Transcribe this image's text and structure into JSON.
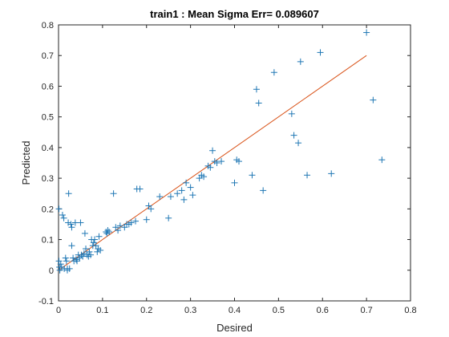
{
  "chart_data": {
    "type": "scatter",
    "title": "train1 :  Mean Sigma Err= 0.089607",
    "xlabel": "Desired",
    "ylabel": "Predicted",
    "xlim": [
      0,
      0.8
    ],
    "ylim": [
      -0.1,
      0.8
    ],
    "xticks": [
      "0",
      "0.1",
      "0.2",
      "0.3",
      "0.4",
      "0.5",
      "0.6",
      "0.7",
      "0.8"
    ],
    "yticks": [
      "-0.1",
      "0",
      "0.1",
      "0.2",
      "0.3",
      "0.4",
      "0.5",
      "0.6",
      "0.7",
      "0.8"
    ],
    "grid": false,
    "legend": "none",
    "colors": {
      "points": "#1f77b4",
      "fit_line": "#d95319",
      "axes": "#262626"
    },
    "fit_line": {
      "x": [
        0.0,
        0.7
      ],
      "y": [
        0.0,
        0.7
      ]
    },
    "points": [
      [
        0.001,
        0.2
      ],
      [
        0.001,
        0.03
      ],
      [
        0.002,
        0.01
      ],
      [
        0.003,
        0.0
      ],
      [
        0.005,
        0.02
      ],
      [
        0.007,
        0.01
      ],
      [
        0.009,
        0.18
      ],
      [
        0.012,
        0.17
      ],
      [
        0.013,
        0.005
      ],
      [
        0.016,
        0.04
      ],
      [
        0.018,
        0.03
      ],
      [
        0.02,
        0.005
      ],
      [
        0.02,
        0.0
      ],
      [
        0.022,
        0.155
      ],
      [
        0.023,
        0.25
      ],
      [
        0.025,
        0.005
      ],
      [
        0.028,
        0.15
      ],
      [
        0.03,
        0.14
      ],
      [
        0.03,
        0.08
      ],
      [
        0.033,
        0.04
      ],
      [
        0.035,
        0.03
      ],
      [
        0.038,
        0.155
      ],
      [
        0.04,
        0.035
      ],
      [
        0.042,
        0.03
      ],
      [
        0.045,
        0.05
      ],
      [
        0.048,
        0.04
      ],
      [
        0.05,
        0.155
      ],
      [
        0.052,
        0.05
      ],
      [
        0.055,
        0.045
      ],
      [
        0.058,
        0.055
      ],
      [
        0.06,
        0.12
      ],
      [
        0.062,
        0.07
      ],
      [
        0.065,
        0.05
      ],
      [
        0.068,
        0.045
      ],
      [
        0.07,
        0.06
      ],
      [
        0.073,
        0.05
      ],
      [
        0.075,
        0.1
      ],
      [
        0.078,
        0.08
      ],
      [
        0.08,
        0.09
      ],
      [
        0.082,
        0.1
      ],
      [
        0.085,
        0.08
      ],
      [
        0.088,
        0.06
      ],
      [
        0.09,
        0.07
      ],
      [
        0.092,
        0.11
      ],
      [
        0.095,
        0.065
      ],
      [
        0.108,
        0.125
      ],
      [
        0.11,
        0.12
      ],
      [
        0.112,
        0.13
      ],
      [
        0.115,
        0.125
      ],
      [
        0.125,
        0.25
      ],
      [
        0.13,
        0.14
      ],
      [
        0.135,
        0.13
      ],
      [
        0.14,
        0.145
      ],
      [
        0.15,
        0.14
      ],
      [
        0.155,
        0.15
      ],
      [
        0.16,
        0.15
      ],
      [
        0.165,
        0.155
      ],
      [
        0.175,
        0.16
      ],
      [
        0.178,
        0.265
      ],
      [
        0.185,
        0.265
      ],
      [
        0.2,
        0.165
      ],
      [
        0.205,
        0.21
      ],
      [
        0.21,
        0.2
      ],
      [
        0.23,
        0.24
      ],
      [
        0.25,
        0.17
      ],
      [
        0.255,
        0.24
      ],
      [
        0.27,
        0.25
      ],
      [
        0.28,
        0.26
      ],
      [
        0.285,
        0.23
      ],
      [
        0.29,
        0.285
      ],
      [
        0.3,
        0.27
      ],
      [
        0.305,
        0.245
      ],
      [
        0.32,
        0.3
      ],
      [
        0.325,
        0.31
      ],
      [
        0.33,
        0.305
      ],
      [
        0.34,
        0.34
      ],
      [
        0.345,
        0.335
      ],
      [
        0.35,
        0.39
      ],
      [
        0.355,
        0.355
      ],
      [
        0.36,
        0.35
      ],
      [
        0.37,
        0.355
      ],
      [
        0.4,
        0.285
      ],
      [
        0.405,
        0.36
      ],
      [
        0.41,
        0.355
      ],
      [
        0.44,
        0.31
      ],
      [
        0.45,
        0.59
      ],
      [
        0.455,
        0.545
      ],
      [
        0.465,
        0.26
      ],
      [
        0.49,
        0.645
      ],
      [
        0.53,
        0.51
      ],
      [
        0.535,
        0.44
      ],
      [
        0.545,
        0.415
      ],
      [
        0.55,
        0.68
      ],
      [
        0.565,
        0.31
      ],
      [
        0.595,
        0.71
      ],
      [
        0.62,
        0.315
      ],
      [
        0.7,
        0.775
      ],
      [
        0.715,
        0.555
      ],
      [
        0.735,
        0.36
      ]
    ]
  }
}
